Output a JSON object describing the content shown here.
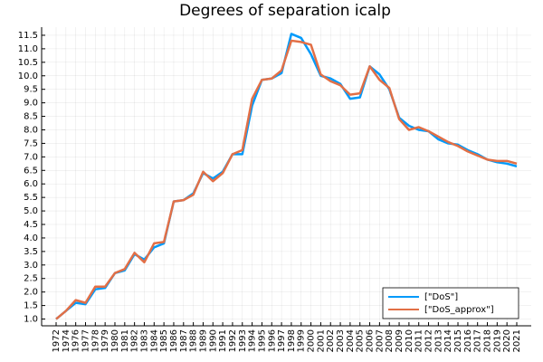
{
  "chart_data": {
    "type": "line",
    "title": "Degrees of separation icalp",
    "categories": [
      "1972",
      "1974",
      "1976",
      "1977",
      "1978",
      "1979",
      "1980",
      "1981",
      "1982",
      "1983",
      "1984",
      "1985",
      "1986",
      "1987",
      "1988",
      "1989",
      "1990",
      "1991",
      "1992",
      "1993",
      "1994",
      "1995",
      "1996",
      "1997",
      "1998",
      "1999",
      "2000",
      "2001",
      "2002",
      "2003",
      "2004",
      "2005",
      "2006",
      "2007",
      "2008",
      "2009",
      "2010",
      "2011",
      "2012",
      "2013",
      "2014",
      "2015",
      "2016",
      "2017",
      "2018",
      "2019",
      "2020",
      "2021"
    ],
    "series": [
      {
        "name": "[\"DoS\"]",
        "color": "#009afa",
        "values": [
          1.0,
          1.3,
          1.6,
          1.55,
          2.1,
          2.15,
          2.7,
          2.8,
          3.4,
          3.2,
          3.65,
          3.8,
          5.35,
          5.4,
          5.65,
          6.4,
          6.2,
          6.45,
          7.1,
          7.1,
          8.9,
          9.85,
          9.9,
          10.1,
          11.55,
          11.4,
          10.8,
          10.0,
          9.9,
          9.7,
          9.15,
          9.2,
          10.35,
          10.05,
          9.5,
          8.45,
          8.15,
          8.0,
          7.95,
          7.65,
          7.5,
          7.45,
          7.25,
          7.1,
          6.9,
          6.8,
          6.75,
          6.65
        ]
      },
      {
        "name": "[\"DoS_approx\"]",
        "color": "#e26f46",
        "values": [
          1.0,
          1.3,
          1.7,
          1.6,
          2.2,
          2.2,
          2.7,
          2.85,
          3.45,
          3.1,
          3.8,
          3.85,
          5.35,
          5.4,
          5.6,
          6.45,
          6.1,
          6.4,
          7.1,
          7.25,
          9.15,
          9.85,
          9.9,
          10.2,
          11.3,
          11.25,
          11.15,
          10.05,
          9.8,
          9.65,
          9.3,
          9.35,
          10.35,
          9.85,
          9.55,
          8.4,
          8.0,
          8.1,
          7.95,
          7.75,
          7.55,
          7.4,
          7.2,
          7.05,
          6.9,
          6.85,
          6.85,
          6.75
        ]
      }
    ],
    "ylim": [
      0.75,
      11.8
    ],
    "yticks": [
      {
        "value": 1.0,
        "label": "1.0"
      },
      {
        "value": 1.5,
        "label": "1.5"
      },
      {
        "value": 2.0,
        "label": "2.0"
      },
      {
        "value": 2.5,
        "label": "2.5"
      },
      {
        "value": 3.0,
        "label": "3.0"
      },
      {
        "value": 3.5,
        "label": "3.5"
      },
      {
        "value": 4.0,
        "label": "4.0"
      },
      {
        "value": 4.5,
        "label": "4.5"
      },
      {
        "value": 5.0,
        "label": "5.0"
      },
      {
        "value": 5.5,
        "label": "5.5"
      },
      {
        "value": 6.0,
        "label": "6.0"
      },
      {
        "value": 6.5,
        "label": "6.5"
      },
      {
        "value": 7.0,
        "label": "7.0"
      },
      {
        "value": 7.5,
        "label": "7.5"
      },
      {
        "value": 8.0,
        "label": "8.0"
      },
      {
        "value": 8.5,
        "label": "8.5"
      },
      {
        "value": 9.0,
        "label": "9.0"
      },
      {
        "value": 9.5,
        "label": "9.5"
      },
      {
        "value": 10.0,
        "label": "10.0"
      },
      {
        "value": 10.5,
        "label": "10.5"
      },
      {
        "value": 11.0,
        "label": "11.0"
      },
      {
        "value": 11.5,
        "label": "11.5"
      }
    ],
    "grid": true,
    "legend": "lower right"
  }
}
